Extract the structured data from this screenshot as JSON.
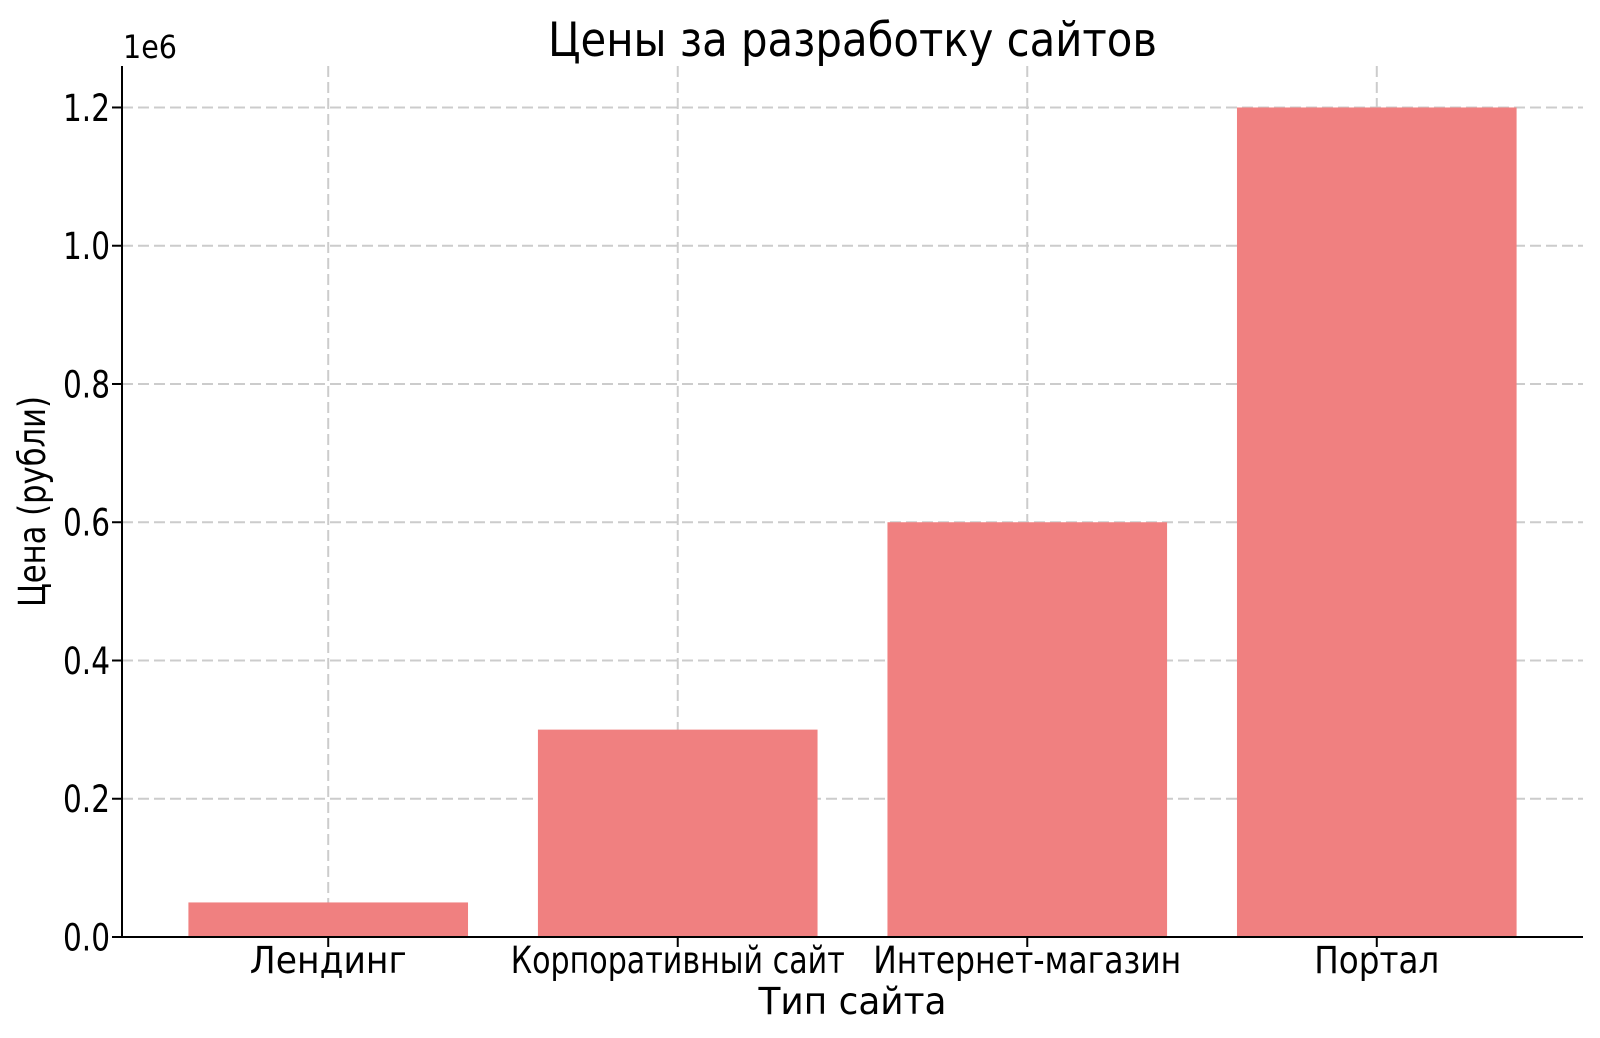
{
  "chart_data": {
    "type": "bar",
    "title": "Цены за разработку сайтов",
    "xlabel": "Тип сайта",
    "ylabel": "Цена (рубли)",
    "categories": [
      "Лендинг",
      "Корпоративный сайт",
      "Интернет-магазин",
      "Портал"
    ],
    "values": [
      50000,
      300000,
      600000,
      1200000
    ],
    "bar_color": "#F08080",
    "ylim": [
      0,
      1260000
    ],
    "yticks": [
      0,
      200000,
      400000,
      600000,
      800000,
      1000000,
      1200000
    ],
    "ytick_labels": [
      "0.0",
      "0.2",
      "0.4",
      "0.6",
      "0.8",
      "1.0",
      "1.2"
    ],
    "offset_text": "1e6",
    "grid": true,
    "grid_color": "#cccccc",
    "grid_style": "dashed",
    "axis_color": "#000000",
    "background": "#ffffff",
    "legend_position": "none"
  }
}
